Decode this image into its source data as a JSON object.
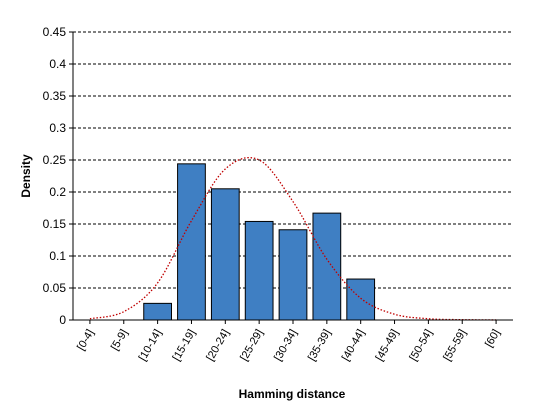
{
  "chart_data": {
    "type": "bar",
    "title": "",
    "xlabel": "Hamming distance",
    "ylabel": "Density",
    "ylim": [
      0,
      0.45
    ],
    "yticks": [
      "0",
      "0.05",
      "0.1",
      "0.15",
      "0.2",
      "0.25",
      "0.3",
      "0.35",
      "0.4",
      "0.45"
    ],
    "categories": [
      "[0-4]",
      "[5-9]",
      "[10-14]",
      "[15-19]",
      "[20-24]",
      "[25-29]",
      "[30-34]",
      "[35-39]",
      "[40-44]",
      "[45-49]",
      "[50-54]",
      "[55-59]",
      "[60]"
    ],
    "series": [
      {
        "type": "bar",
        "color": "#3f7fc3",
        "values": [
          0,
          0,
          0.026,
          0.244,
          0.205,
          0.154,
          0.141,
          0.167,
          0.064,
          0,
          0,
          0,
          0
        ]
      },
      {
        "type": "line",
        "style": "dotted",
        "color": "#c00000",
        "values": [
          0.002,
          0.013,
          0.058,
          0.155,
          0.236,
          0.25,
          0.185,
          0.095,
          0.034,
          0.009,
          0.002,
          0.0005,
          0.0001
        ]
      }
    ],
    "grid": true
  }
}
